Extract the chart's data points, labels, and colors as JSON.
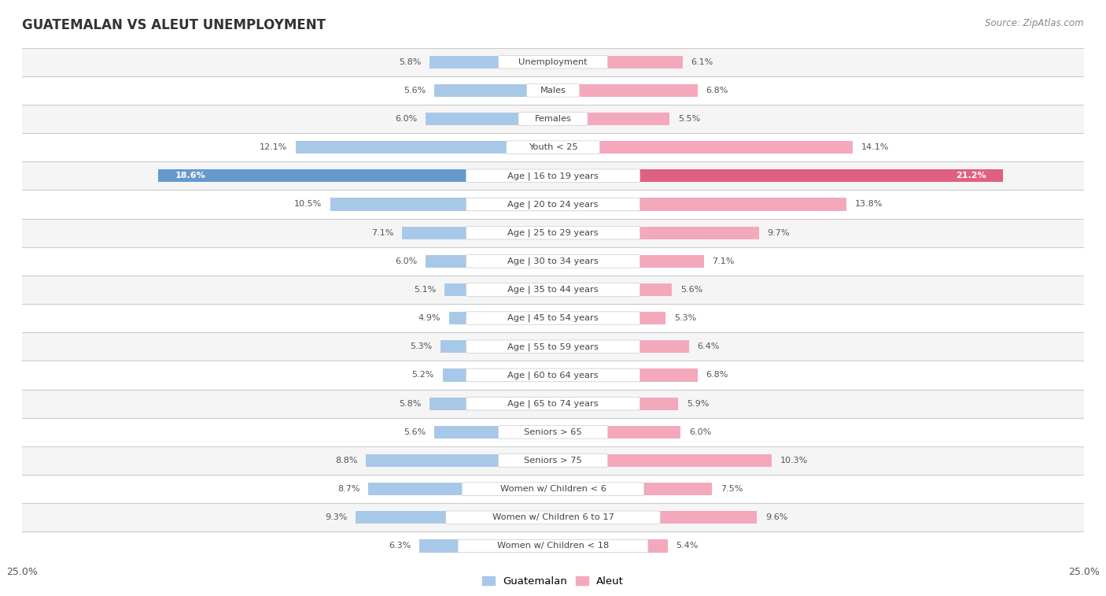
{
  "title": "GUATEMALAN VS ALEUT UNEMPLOYMENT",
  "source": "Source: ZipAtlas.com",
  "categories": [
    "Unemployment",
    "Males",
    "Females",
    "Youth < 25",
    "Age | 16 to 19 years",
    "Age | 20 to 24 years",
    "Age | 25 to 29 years",
    "Age | 30 to 34 years",
    "Age | 35 to 44 years",
    "Age | 45 to 54 years",
    "Age | 55 to 59 years",
    "Age | 60 to 64 years",
    "Age | 65 to 74 years",
    "Seniors > 65",
    "Seniors > 75",
    "Women w/ Children < 6",
    "Women w/ Children 6 to 17",
    "Women w/ Children < 18"
  ],
  "guatemalan": [
    5.8,
    5.6,
    6.0,
    12.1,
    18.6,
    10.5,
    7.1,
    6.0,
    5.1,
    4.9,
    5.3,
    5.2,
    5.8,
    5.6,
    8.8,
    8.7,
    9.3,
    6.3
  ],
  "aleut": [
    6.1,
    6.8,
    5.5,
    14.1,
    21.2,
    13.8,
    9.7,
    7.1,
    5.6,
    5.3,
    6.4,
    6.8,
    5.9,
    6.0,
    10.3,
    7.5,
    9.6,
    5.4
  ],
  "guatemalan_color": "#a8c8e8",
  "aleut_color": "#f4a8bc",
  "highlight_guatemalan_color": "#6699cc",
  "highlight_aleut_color": "#e06080",
  "max_val": 25.0,
  "bg_color": "#ffffff",
  "row_color_light": "#f5f5f5",
  "row_color_dark": "#e8e8e8",
  "separator_color": "#cccccc",
  "bar_height": 0.45,
  "legend_guatemalan": "Guatemalan",
  "legend_aleut": "Aleut",
  "highlight_row": 4
}
